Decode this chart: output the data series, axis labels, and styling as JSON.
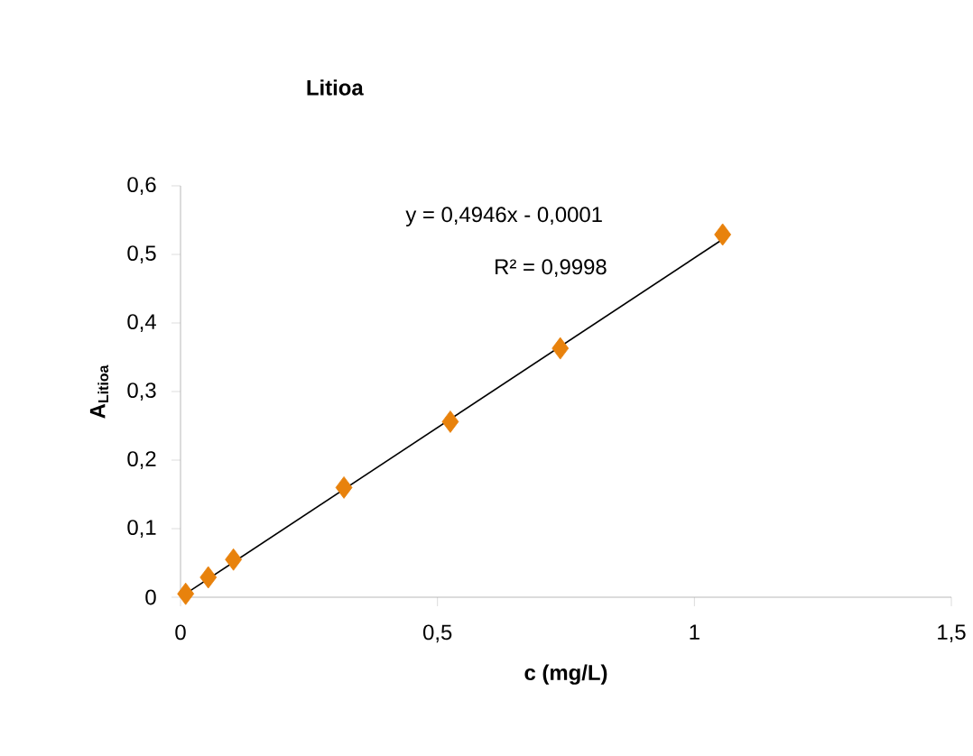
{
  "chart_data": {
    "type": "scatter",
    "title": "Litioa",
    "xlabel": "c (mg/L)",
    "ylabel": "A$_{Litioa}$",
    "annotations": [
      "y = 0,4946x - 0,0001",
      "R² = 0,9998"
    ],
    "series": [
      {
        "color": "#e8820c",
        "marker": "diamond",
        "x": [
          0.01,
          0.054,
          0.103,
          0.318,
          0.525,
          0.739,
          1.055
        ],
        "values": [
          0.005,
          0.029,
          0.055,
          0.16,
          0.256,
          0.363,
          0.529
        ]
      },
      {
        "type": "line",
        "color": "#000000",
        "x": [
          0.01,
          1.055
        ],
        "values": [
          0.005,
          0.522
        ]
      }
    ],
    "xlim": [
      0,
      1.5
    ],
    "xticks": [
      0,
      {
        "value": 0.5,
        "label": "0,5"
      },
      1,
      {
        "value": 1.5,
        "label": "1,5"
      }
    ],
    "ylim": [
      0,
      0.6
    ],
    "yticks": [
      0,
      {
        "value": 0.1,
        "label": "0,1"
      },
      {
        "value": 0.2,
        "label": "0,2"
      },
      {
        "value": 0.3,
        "label": "0,3"
      },
      {
        "value": 0.4,
        "label": "0,4"
      },
      {
        "value": 0.5,
        "label": "0,5"
      },
      {
        "value": 0.6,
        "label": "0,6"
      }
    ],
    "grid": false
  }
}
